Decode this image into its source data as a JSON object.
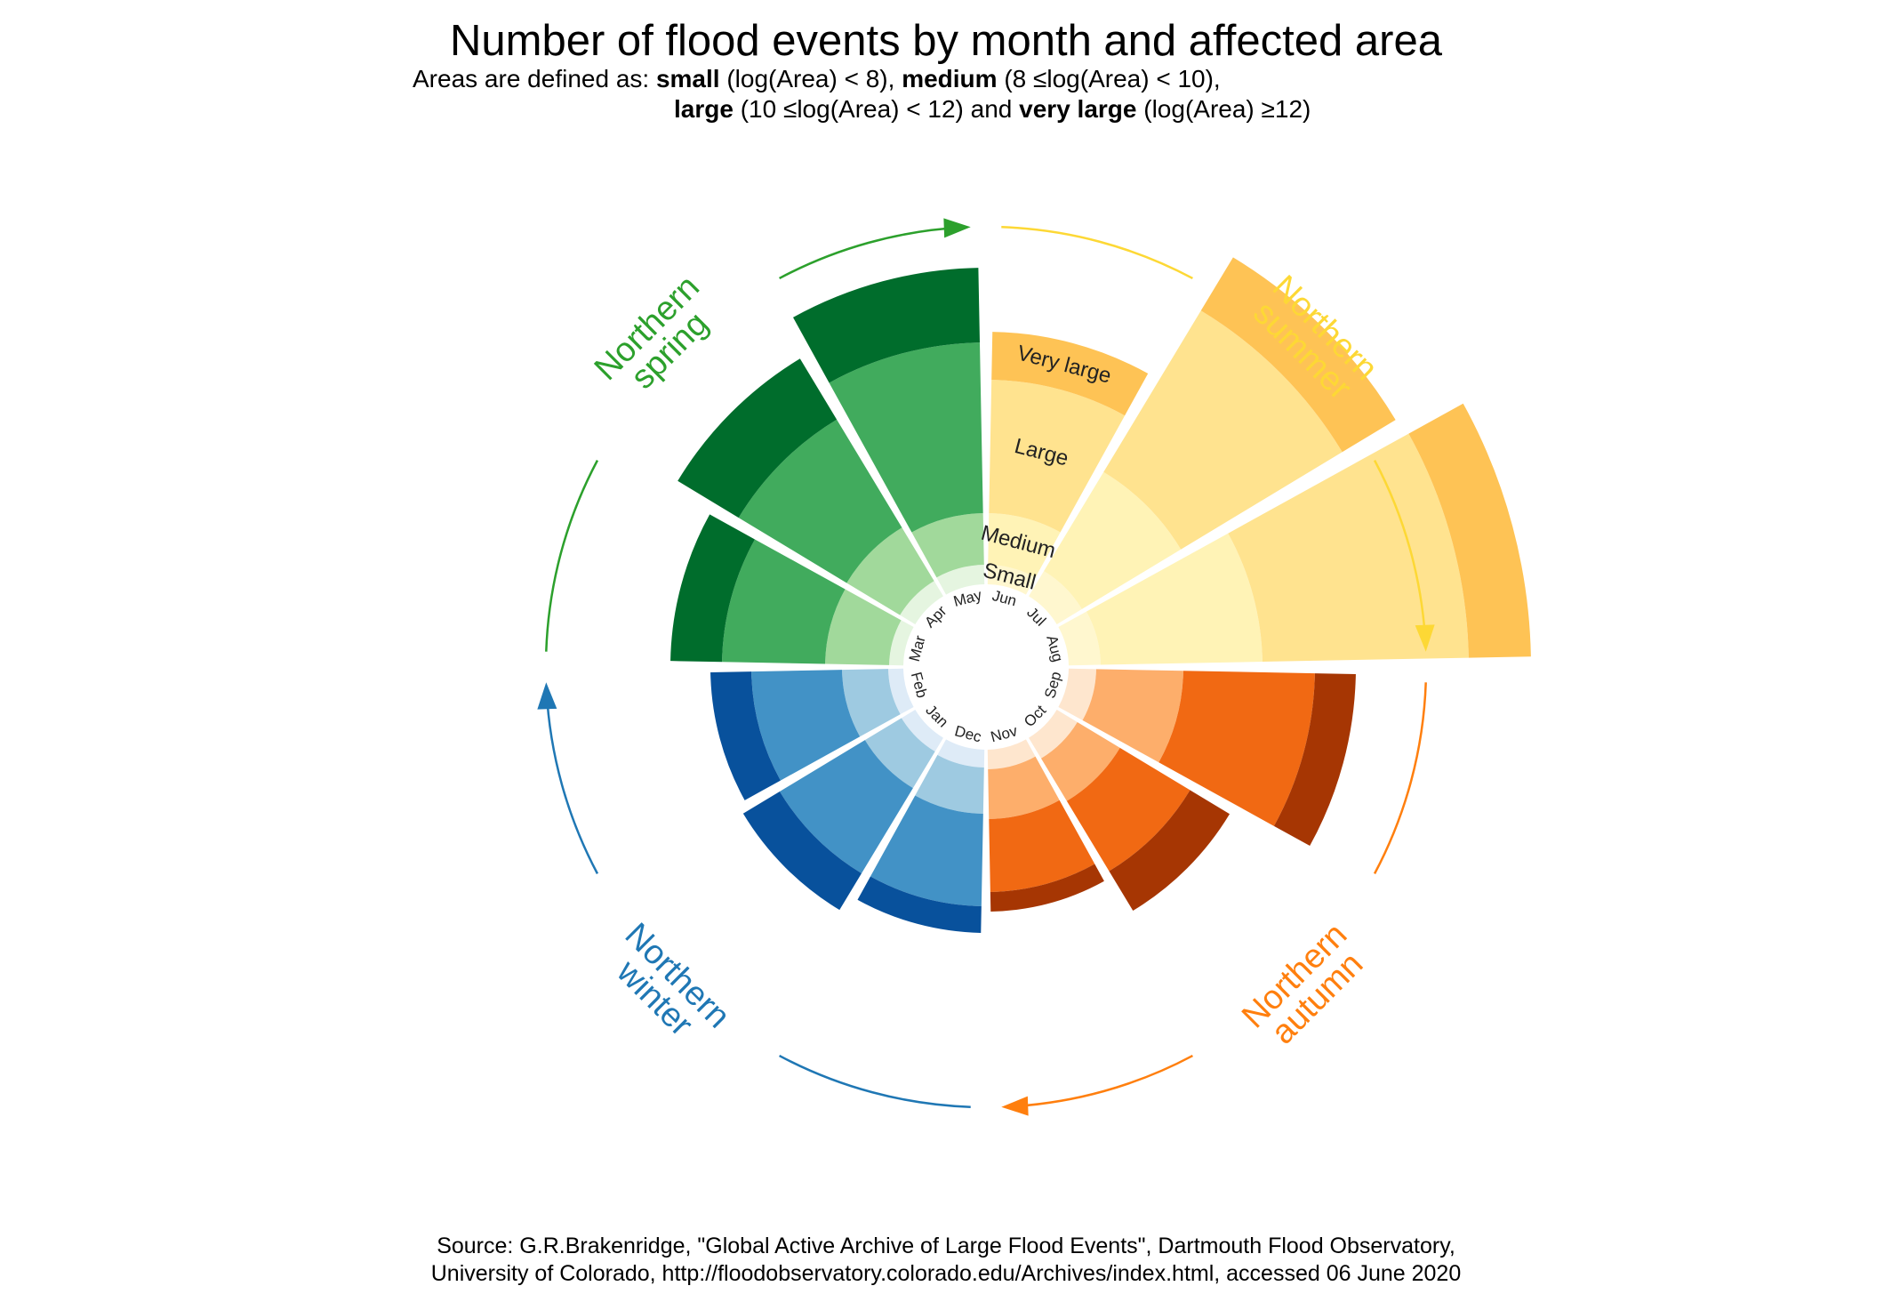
{
  "title": "Number of flood events by month and affected area",
  "subtitle": {
    "prefix": "Areas are defined as: ",
    "small_bold": "small",
    "small_def": " (log(Area) < 8), ",
    "medium_bold": "medium",
    "medium_def": " (8 ≤log(Area) < 10),",
    "large_bold": "large",
    "large_def": " (10 ≤log(Area) < 12) and ",
    "verylarge_bold": "very large",
    "verylarge_def": " (log(Area) ≥12)"
  },
  "caption": {
    "line1": "Source: G.R.Brakenridge, \"Global Active Archive of Large Flood Events\", Dartmouth Flood Observatory,",
    "line2": "University of Colorado, http://floodobservatory.colorado.edu/Archives/index.html, accessed 06 June 2020"
  },
  "chart_data": {
    "type": "bar",
    "polar": true,
    "stacked": true,
    "categories": [
      "Jun",
      "Jul",
      "Aug",
      "Sep",
      "Oct",
      "Nov",
      "Dec",
      "Jan",
      "Feb",
      "Mar",
      "Apr",
      "May"
    ],
    "band_labels": [
      "Small",
      "Medium",
      "Large",
      "Very large"
    ],
    "series": [
      {
        "values": [
          22,
          33,
          36,
          31,
          27,
          22,
          20,
          18,
          17,
          16,
          20,
          22
        ]
      },
      {
        "values": [
          58,
          130,
          182,
          98,
          56,
          56,
          52,
          48,
          52,
          72,
          70,
          58
        ]
      },
      {
        "values": [
          150,
          212,
          232,
          148,
          92,
          82,
          104,
          112,
          102,
          116,
          142,
          192
        ]
      },
      {
        "values": [
          54,
          70,
          70,
          46,
          52,
          22,
          30,
          48,
          46,
          58,
          80,
          84
        ]
      }
    ],
    "colors": {
      "Jun": [
        "#fff7cf",
        "#fff3b6",
        "#ffe38f",
        "#fec355"
      ],
      "Jul": [
        "#fff7cf",
        "#fff3b6",
        "#ffe38f",
        "#fec355"
      ],
      "Aug": [
        "#fff7cf",
        "#fff3b6",
        "#ffe38f",
        "#fec355"
      ],
      "Sep": [
        "#fee6ce",
        "#fdae6b",
        "#f16913",
        "#a63603"
      ],
      "Oct": [
        "#fee6ce",
        "#fdae6b",
        "#f16913",
        "#a63603"
      ],
      "Nov": [
        "#fee6ce",
        "#fdae6b",
        "#f16913",
        "#a63603"
      ],
      "Dec": [
        "#deebf7",
        "#9ecae1",
        "#4292c6",
        "#08519c"
      ],
      "Jan": [
        "#deebf7",
        "#9ecae1",
        "#4292c6",
        "#08519c"
      ],
      "Feb": [
        "#deebf7",
        "#9ecae1",
        "#4292c6",
        "#08519c"
      ],
      "Mar": [
        "#e5f5e0",
        "#a1d99b",
        "#41ab5d",
        "#006d2c"
      ],
      "Apr": [
        "#e5f5e0",
        "#a1d99b",
        "#41ab5d",
        "#006d2c"
      ],
      "May": [
        "#e5f5e0",
        "#a1d99b",
        "#41ab5d",
        "#006d2c"
      ]
    },
    "seasons": [
      {
        "line1": "Northern",
        "line2": "summer",
        "color": "#fdd835"
      },
      {
        "line1": "Northern",
        "line2": "autumn",
        "color": "#ff7f0e"
      },
      {
        "line1": "Northern",
        "line2": "winter",
        "color": "#1f77b4"
      },
      {
        "line1": "Northern",
        "line2": "spring",
        "color": "#2ca02c"
      }
    ]
  }
}
